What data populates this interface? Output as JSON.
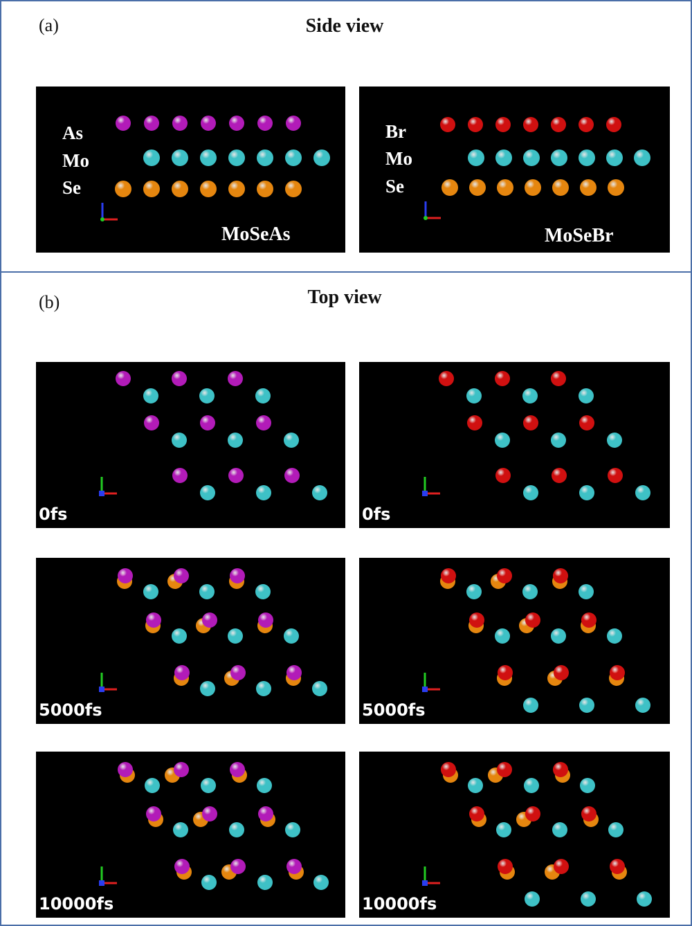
{
  "colors": {
    "As": "#b21bb8",
    "Mo": "#3ec1c6",
    "Se": "#e5860f",
    "Br": "#d01010",
    "frame": "#4a6ea8"
  },
  "section_a": {
    "label": "(a)",
    "title": "Side view",
    "panels": [
      {
        "material": "MoSeAs",
        "elements": [
          "As",
          "Mo",
          "Se"
        ]
      },
      {
        "material": "MoSeBr",
        "elements": [
          "Br",
          "Mo",
          "Se"
        ]
      }
    ]
  },
  "section_b": {
    "label": "(b)",
    "title": "Top view",
    "rows": [
      {
        "time": "0fs"
      },
      {
        "time": "5000fs"
      },
      {
        "time": "10000fs"
      }
    ]
  }
}
